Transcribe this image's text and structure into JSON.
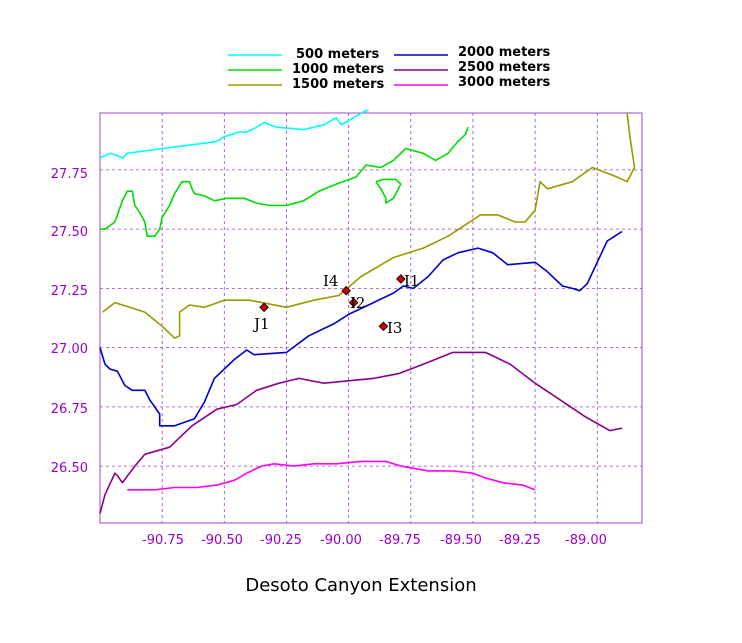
{
  "title": "Desoto Canyon Extension",
  "axes": {
    "x_ticks": [
      "-90.75",
      "-90.50",
      "-90.25",
      "-90.00",
      "-89.75",
      "-89.50",
      "-89.25",
      "-89.00"
    ],
    "y_ticks": [
      "27.75",
      "27.50",
      "27.25",
      "27.00",
      "26.75",
      "26.50"
    ],
    "grid_color": "#a040d0",
    "tick_color": "#9900cc"
  },
  "legend": [
    {
      "label": "500 meters",
      "color": "#00ffff"
    },
    {
      "label": "2000 meters",
      "color": "#0000cc"
    },
    {
      "label": "1000 meters",
      "color": "#00dd00"
    },
    {
      "label": "2500 meters",
      "color": "#8b008b"
    },
    {
      "label": "1500 meters",
      "color": "#999900"
    },
    {
      "label": "3000 meters",
      "color": "#ff00ff"
    }
  ],
  "stations": [
    {
      "label": "I1",
      "lon": -89.79,
      "lat": 27.29
    },
    {
      "label": "I2",
      "lon": -89.98,
      "lat": 27.19
    },
    {
      "label": "I3",
      "lon": -89.86,
      "lat": 27.09
    },
    {
      "label": "I4",
      "lon": -90.01,
      "lat": 27.24
    },
    {
      "label": "J1",
      "lon": -90.34,
      "lat": 27.17
    }
  ],
  "contours": {
    "c500": [
      [
        [
          -91.0,
          27.8
        ],
        [
          -90.96,
          27.82
        ],
        [
          -90.93,
          27.81
        ],
        [
          -90.91,
          27.8
        ],
        [
          -90.89,
          27.82
        ],
        [
          -90.75,
          27.84
        ],
        [
          -90.6,
          27.86
        ],
        [
          -90.53,
          27.87
        ],
        [
          -90.5,
          27.89
        ],
        [
          -90.44,
          27.91
        ],
        [
          -90.41,
          27.91
        ],
        [
          -90.37,
          27.93
        ],
        [
          -90.34,
          27.95
        ],
        [
          -90.29,
          27.93
        ],
        [
          -90.18,
          27.92
        ],
        [
          -90.1,
          27.94
        ],
        [
          -90.05,
          27.97
        ],
        [
          -90.03,
          27.94
        ],
        [
          -89.98,
          27.97
        ],
        [
          -89.93,
          28.0
        ],
        [
          -89.92,
          28.0
        ]
      ]
    ],
    "c1000": [
      [
        [
          -91.0,
          27.5
        ],
        [
          -90.98,
          27.5
        ],
        [
          -90.94,
          27.53
        ],
        [
          -90.91,
          27.62
        ],
        [
          -90.89,
          27.66
        ],
        [
          -90.87,
          27.66
        ],
        [
          -90.86,
          27.6
        ],
        [
          -90.84,
          27.57
        ],
        [
          -90.82,
          27.53
        ],
        [
          -90.81,
          27.47
        ],
        [
          -90.78,
          27.47
        ],
        [
          -90.76,
          27.5
        ],
        [
          -90.75,
          27.55
        ],
        [
          -90.72,
          27.6
        ],
        [
          -90.7,
          27.65
        ],
        [
          -90.67,
          27.7
        ],
        [
          -90.64,
          27.7
        ],
        [
          -90.63,
          27.67
        ],
        [
          -90.62,
          27.65
        ],
        [
          -90.58,
          27.64
        ],
        [
          -90.54,
          27.62
        ],
        [
          -90.49,
          27.63
        ],
        [
          -90.42,
          27.63
        ],
        [
          -90.37,
          27.61
        ],
        [
          -90.32,
          27.6
        ],
        [
          -90.25,
          27.6
        ],
        [
          -90.18,
          27.62
        ],
        [
          -90.12,
          27.66
        ],
        [
          -90.05,
          27.69
        ],
        [
          -89.97,
          27.72
        ],
        [
          -89.93,
          27.77
        ],
        [
          -89.87,
          27.76
        ],
        [
          -89.82,
          27.79
        ],
        [
          -89.77,
          27.84
        ],
        [
          -89.7,
          27.82
        ],
        [
          -89.65,
          27.79
        ],
        [
          -89.6,
          27.82
        ],
        [
          -89.56,
          27.87
        ],
        [
          -89.53,
          27.9
        ],
        [
          -89.52,
          27.93
        ]
      ],
      [
        [
          -89.89,
          27.7
        ],
        [
          -89.87,
          27.67
        ],
        [
          -89.85,
          27.63
        ],
        [
          -89.85,
          27.61
        ],
        [
          -89.82,
          27.63
        ],
        [
          -89.79,
          27.69
        ],
        [
          -89.81,
          27.71
        ],
        [
          -89.86,
          27.71
        ],
        [
          -89.89,
          27.7
        ]
      ]
    ],
    "c1500": [
      [
        [
          -90.99,
          27.15
        ],
        [
          -90.94,
          27.19
        ],
        [
          -90.82,
          27.15
        ],
        [
          -90.75,
          27.09
        ],
        [
          -90.7,
          27.04
        ],
        [
          -90.68,
          27.05
        ],
        [
          -90.68,
          27.15
        ],
        [
          -90.64,
          27.18
        ],
        [
          -90.58,
          27.17
        ],
        [
          -90.5,
          27.2
        ],
        [
          -90.4,
          27.2
        ],
        [
          -90.25,
          27.17
        ],
        [
          -90.14,
          27.2
        ],
        [
          -90.04,
          27.22
        ],
        [
          -89.95,
          27.3
        ],
        [
          -89.82,
          27.38
        ],
        [
          -89.7,
          27.42
        ],
        [
          -89.6,
          27.47
        ],
        [
          -89.47,
          27.56
        ],
        [
          -89.4,
          27.56
        ],
        [
          -89.33,
          27.53
        ],
        [
          -89.29,
          27.53
        ],
        [
          -89.25,
          27.58
        ],
        [
          -89.23,
          27.7
        ],
        [
          -89.2,
          27.67
        ],
        [
          -89.1,
          27.7
        ],
        [
          -89.02,
          27.76
        ],
        [
          -88.92,
          27.72
        ],
        [
          -88.88,
          27.7
        ],
        [
          -88.85,
          27.76
        ],
        [
          -88.87,
          27.9
        ],
        [
          -88.88,
          27.99
        ]
      ]
    ],
    "c2000": [
      [
        [
          -91.0,
          27.0
        ],
        [
          -90.98,
          26.93
        ],
        [
          -90.96,
          26.91
        ],
        [
          -90.93,
          26.9
        ],
        [
          -90.9,
          26.84
        ],
        [
          -90.87,
          26.82
        ],
        [
          -90.82,
          26.82
        ],
        [
          -90.8,
          26.78
        ],
        [
          -90.76,
          26.72
        ],
        [
          -90.76,
          26.67
        ],
        [
          -90.7,
          26.67
        ],
        [
          -90.62,
          26.7
        ],
        [
          -90.58,
          26.77
        ],
        [
          -90.54,
          26.87
        ],
        [
          -90.46,
          26.95
        ],
        [
          -90.41,
          26.99
        ],
        [
          -90.38,
          26.97
        ],
        [
          -90.25,
          26.98
        ],
        [
          -90.16,
          27.05
        ],
        [
          -90.06,
          27.1
        ],
        [
          -90.0,
          27.14
        ],
        [
          -89.9,
          27.19
        ],
        [
          -89.82,
          27.23
        ],
        [
          -89.78,
          27.26
        ],
        [
          -89.74,
          27.25
        ],
        [
          -89.68,
          27.3
        ],
        [
          -89.62,
          27.37
        ],
        [
          -89.56,
          27.4
        ],
        [
          -89.48,
          27.42
        ],
        [
          -89.42,
          27.4
        ],
        [
          -89.36,
          27.35
        ],
        [
          -89.25,
          27.36
        ],
        [
          -89.2,
          27.32
        ],
        [
          -89.14,
          27.26
        ],
        [
          -89.1,
          27.25
        ],
        [
          -89.07,
          27.24
        ],
        [
          -89.04,
          27.27
        ],
        [
          -89.0,
          27.36
        ],
        [
          -88.96,
          27.45
        ],
        [
          -88.93,
          27.47
        ],
        [
          -88.9,
          27.49
        ]
      ]
    ],
    "c2500": [
      [
        [
          -91.0,
          26.3
        ],
        [
          -90.98,
          26.38
        ],
        [
          -90.94,
          26.47
        ],
        [
          -90.93,
          26.46
        ],
        [
          -90.91,
          26.43
        ],
        [
          -90.86,
          26.5
        ],
        [
          -90.82,
          26.55
        ],
        [
          -90.72,
          26.58
        ],
        [
          -90.63,
          26.67
        ],
        [
          -90.53,
          26.74
        ],
        [
          -90.45,
          26.76
        ],
        [
          -90.37,
          26.82
        ],
        [
          -90.28,
          26.85
        ],
        [
          -90.2,
          26.87
        ],
        [
          -90.1,
          26.85
        ],
        [
          -90.0,
          26.86
        ],
        [
          -89.9,
          26.87
        ],
        [
          -89.8,
          26.89
        ],
        [
          -89.7,
          26.93
        ],
        [
          -89.58,
          26.98
        ],
        [
          -89.45,
          26.98
        ],
        [
          -89.35,
          26.93
        ],
        [
          -89.25,
          26.85
        ],
        [
          -89.15,
          26.78
        ],
        [
          -89.05,
          26.71
        ],
        [
          -89.0,
          26.68
        ],
        [
          -88.95,
          26.65
        ],
        [
          -88.9,
          26.66
        ]
      ]
    ],
    "c3000": [
      [
        [
          -90.89,
          26.4
        ],
        [
          -90.85,
          26.4
        ],
        [
          -90.78,
          26.4
        ],
        [
          -90.7,
          26.41
        ],
        [
          -90.61,
          26.41
        ],
        [
          -90.53,
          26.42
        ],
        [
          -90.46,
          26.44
        ],
        [
          -90.41,
          26.47
        ],
        [
          -90.35,
          26.5
        ],
        [
          -90.3,
          26.51
        ],
        [
          -90.22,
          26.5
        ],
        [
          -90.14,
          26.51
        ],
        [
          -90.05,
          26.51
        ],
        [
          -89.95,
          26.52
        ],
        [
          -89.85,
          26.52
        ],
        [
          -89.79,
          26.5
        ],
        [
          -89.68,
          26.48
        ],
        [
          -89.58,
          26.48
        ],
        [
          -89.5,
          26.47
        ],
        [
          -89.45,
          26.45
        ],
        [
          -89.38,
          26.43
        ],
        [
          -89.3,
          26.42
        ],
        [
          -89.25,
          26.4
        ]
      ]
    ]
  }
}
